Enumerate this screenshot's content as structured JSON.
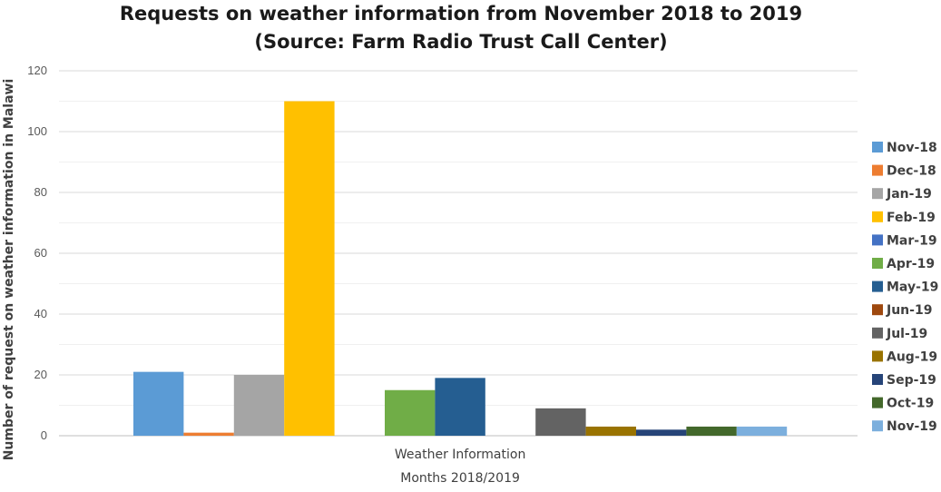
{
  "chart_data": {
    "type": "bar",
    "title": "Requests on weather information from November 2018 to 2019",
    "subtitle": "(Source: Farm Radio Trust Call Center)",
    "xlabel": "Months 2018/2019",
    "ylabel": "Number of request on weather information in Malawi",
    "categories": [
      "Weather Information"
    ],
    "ylim": [
      0,
      120
    ],
    "yticks": [
      0,
      20,
      40,
      60,
      80,
      100,
      120
    ],
    "grid": true,
    "legend_position": "right",
    "series": [
      {
        "name": "Nov-18",
        "values": [
          21
        ],
        "color": "#5b9bd5"
      },
      {
        "name": "Dec-18",
        "values": [
          1
        ],
        "color": "#ed7d31"
      },
      {
        "name": "Jan-19",
        "values": [
          20
        ],
        "color": "#a5a5a5"
      },
      {
        "name": "Feb-19",
        "values": [
          110
        ],
        "color": "#ffc000"
      },
      {
        "name": "Mar-19",
        "values": [
          0
        ],
        "color": "#4472c4"
      },
      {
        "name": "Apr-19",
        "values": [
          15
        ],
        "color": "#70ad47"
      },
      {
        "name": "May-19",
        "values": [
          19
        ],
        "color": "#255e91"
      },
      {
        "name": "Jun-19",
        "values": [
          0
        ],
        "color": "#9e480e"
      },
      {
        "name": "Jul-19",
        "values": [
          9
        ],
        "color": "#636363"
      },
      {
        "name": "Aug-19",
        "values": [
          3
        ],
        "color": "#997300"
      },
      {
        "name": "Sep-19",
        "values": [
          2
        ],
        "color": "#264478"
      },
      {
        "name": "Oct-19",
        "values": [
          3
        ],
        "color": "#43682b"
      },
      {
        "name": "Nov-19",
        "values": [
          3
        ],
        "color": "#7cafdd"
      }
    ]
  }
}
